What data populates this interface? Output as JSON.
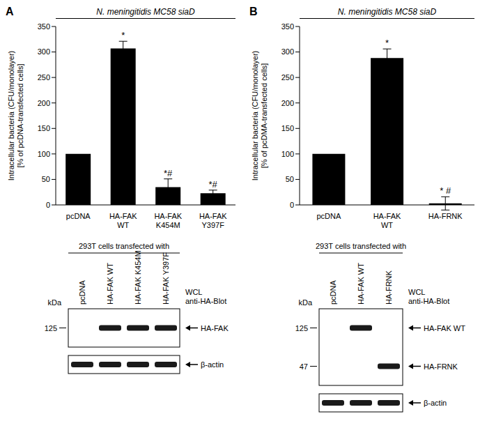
{
  "panel_labels": [
    "A",
    "B"
  ],
  "chart_data": [
    {
      "type": "bar",
      "title": "N. meningitidis MC58 siaD",
      "ylabel": [
        "Intracellular bacteria  (CFU/monolayer)",
        "[% of pcDNA-transfected cells]"
      ],
      "categories": [
        "pcDNA",
        "HA-FAK WT",
        "HA-FAK K454M",
        "HA-FAK Y397F"
      ],
      "values": [
        100,
        307,
        35,
        23
      ],
      "errors": [
        null,
        14,
        16,
        6
      ],
      "annotations": [
        null,
        "*",
        "*#",
        "*#"
      ],
      "color": "#000000",
      "ylim": [
        0,
        350
      ],
      "yticks": [
        0,
        50,
        100,
        150,
        200,
        250,
        300,
        350
      ],
      "grid": false
    },
    {
      "type": "bar",
      "title": "N. meningitidis MC58 siaD",
      "ylabel": [
        "Intracellular bacteria  (CFU/monolayer)",
        "[% of pcDMA-transfected cells]"
      ],
      "categories": [
        "pcDNA",
        "HA-FAK WT",
        "HA-FRNK"
      ],
      "values": [
        100,
        288,
        3
      ],
      "errors": [
        null,
        18,
        13
      ],
      "annotations": [
        null,
        "*",
        "* #"
      ],
      "color": "#000000",
      "ylim": [
        0,
        350
      ],
      "yticks": [
        0,
        50,
        100,
        150,
        200,
        250,
        300,
        350
      ],
      "grid": false
    }
  ],
  "blots": [
    {
      "header": "293T cells transfected with",
      "lanes": [
        "pcDNA",
        "HA-FAK WT",
        "HA-FAK K454M",
        "HA-FAK Y397F"
      ],
      "unit": "kDa",
      "note": [
        "WCL",
        "anti-HA-Blot"
      ],
      "panels": [
        {
          "rows": [
            {
              "label": "HA-FAK",
              "marker": 125,
              "lanes": [
                false,
                true,
                true,
                true
              ]
            }
          ]
        },
        {
          "rows": [
            {
              "label": "β-actin",
              "lanes": [
                true,
                true,
                true,
                true
              ]
            }
          ]
        }
      ]
    },
    {
      "header": "293T cells transfected with",
      "lanes": [
        "pcDNA",
        "HA-FAK WT",
        "HA-FRNK"
      ],
      "unit": "kDa",
      "note": [
        "WCL",
        "anti-HA-Blot"
      ],
      "panels": [
        {
          "rows": [
            {
              "label": "HA-FAK WT",
              "marker": 125,
              "lanes": [
                false,
                true,
                false
              ]
            },
            {
              "label": "HA-FRNK",
              "marker": 47,
              "lanes": [
                false,
                false,
                true
              ]
            }
          ]
        },
        {
          "rows": [
            {
              "label": "β-actin",
              "lanes": [
                true,
                true,
                true
              ]
            }
          ]
        }
      ]
    }
  ]
}
